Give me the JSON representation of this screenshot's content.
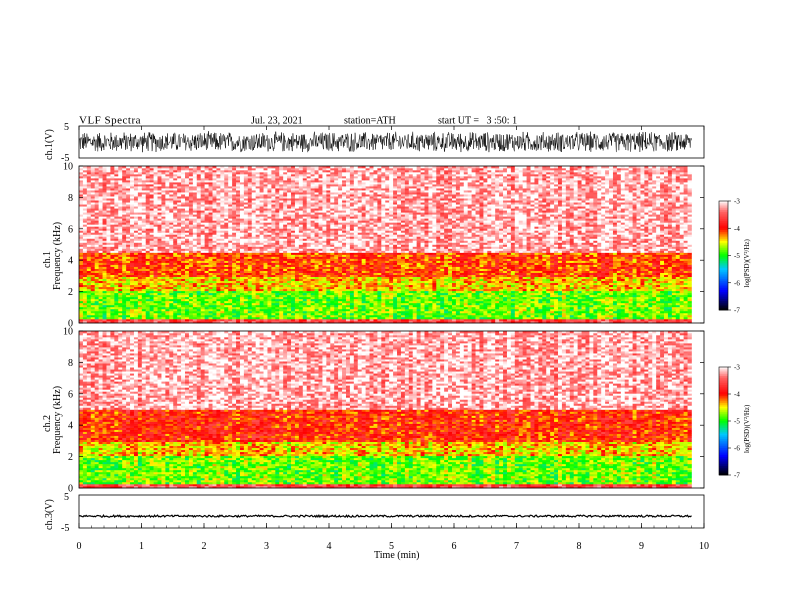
{
  "header": {
    "title": "VLF Spectra",
    "date": "Jul. 23, 2021",
    "station": "station=ATH",
    "start_ut": "start UT =   3 :50: 1"
  },
  "colors": {
    "low": "#000000",
    "mid_low": "#0000ff",
    "mid": "#00ff00",
    "mid_high": "#ffff00",
    "high": "#ff0000",
    "top": "#ffffff"
  },
  "chart_data": [
    {
      "type": "line",
      "name": "ch1-waveform",
      "ylabel": "ch.1(V)",
      "ylim": [
        -5,
        5
      ],
      "yticks": [
        "5",
        "-5"
      ],
      "x_range_min": [
        0,
        9.8
      ],
      "amplitude_approx": 3.5
    },
    {
      "type": "heatmap",
      "name": "ch1-spectrogram",
      "ylabel": "ch.1",
      "ylabel2": "Frequency (kHz)",
      "ylim": [
        0,
        10
      ],
      "yticks": [
        "0",
        "2",
        "4",
        "6",
        "8",
        "10"
      ],
      "x_range_min": [
        0,
        9.8
      ],
      "colorbar": {
        "label": "log(PSD)(V²/Hz)",
        "ticks": [
          "-3",
          "-4",
          "-5",
          "-6",
          "-7"
        ],
        "range": [
          -7,
          -3
        ]
      },
      "bands_khz": [
        {
          "from": 0,
          "to": 0.3,
          "level": -3.6
        },
        {
          "from": 0.3,
          "to": 2.0,
          "level": -4.8
        },
        {
          "from": 2.0,
          "to": 3.0,
          "level": -4.4
        },
        {
          "from": 3.0,
          "to": 4.5,
          "level": -4.1
        },
        {
          "from": 4.5,
          "to": 10,
          "level": -3.2
        }
      ]
    },
    {
      "type": "heatmap",
      "name": "ch2-spectrogram",
      "ylabel": "ch.2",
      "ylabel2": "Frequency (kHz)",
      "ylim": [
        0,
        10
      ],
      "yticks": [
        "0",
        "2",
        "4",
        "6",
        "8",
        "10"
      ],
      "x_range_min": [
        0,
        9.8
      ],
      "colorbar": {
        "label": "log(PSD)(V²/Hz)",
        "ticks": [
          "-3",
          "-4",
          "-5",
          "-6",
          "-7"
        ],
        "range": [
          -7,
          -3
        ]
      },
      "bands_khz": [
        {
          "from": 0,
          "to": 0.3,
          "level": -3.6
        },
        {
          "from": 0.3,
          "to": 2.0,
          "level": -4.8
        },
        {
          "from": 2.0,
          "to": 3.0,
          "level": -4.4
        },
        {
          "from": 3.0,
          "to": 5.0,
          "level": -4.0
        },
        {
          "from": 5.0,
          "to": 10,
          "level": -3.2
        }
      ]
    },
    {
      "type": "line",
      "name": "ch3-waveform",
      "ylabel": "ch.3(V)",
      "ylim": [
        -5,
        5
      ],
      "yticks": [
        "5",
        "-5"
      ],
      "x_range_min": [
        0,
        9.8
      ],
      "offset_v": -1.4,
      "amplitude_approx": 0.3
    }
  ],
  "xaxis": {
    "label": "Time (min)",
    "xlim": [
      0,
      10
    ],
    "ticks": [
      "0",
      "1",
      "2",
      "3",
      "4",
      "5",
      "6",
      "7",
      "8",
      "9",
      "10"
    ]
  }
}
